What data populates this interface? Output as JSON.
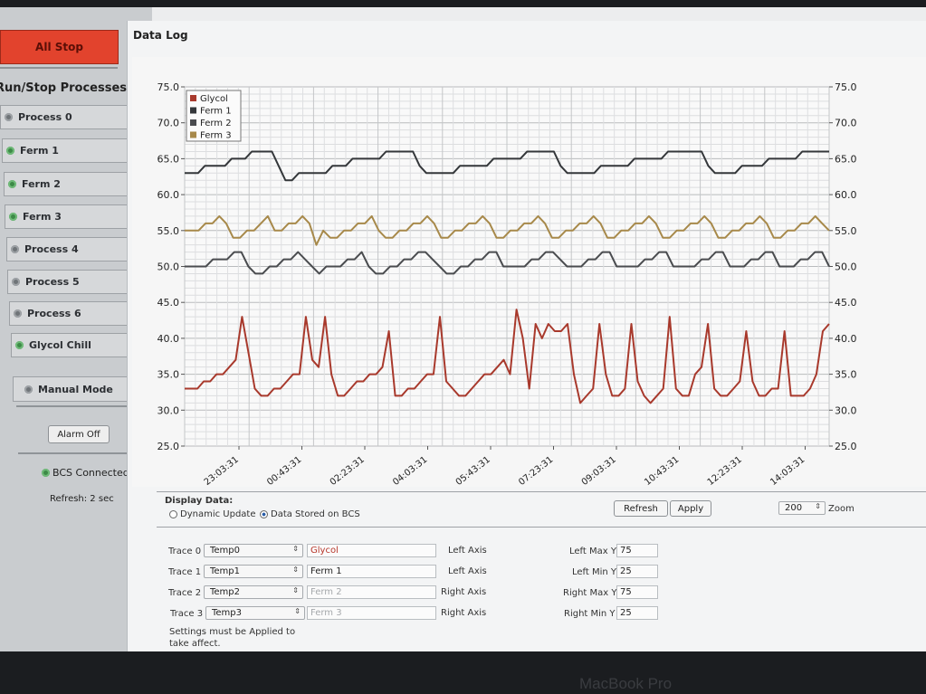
{
  "sidebar": {
    "all_stop": "All Stop",
    "processes_title": "Run/Stop Processes",
    "processes": [
      {
        "label": "Process 0",
        "status": "grey"
      },
      {
        "label": "Ferm 1",
        "status": "green"
      },
      {
        "label": "Ferm 2",
        "status": "green"
      },
      {
        "label": "Ferm 3",
        "status": "green"
      },
      {
        "label": "Process 4",
        "status": "grey"
      },
      {
        "label": "Process 5",
        "status": "grey"
      },
      {
        "label": "Process 6",
        "status": "grey"
      },
      {
        "label": "Glycol Chill",
        "status": "green"
      }
    ],
    "manual_mode": "Manual Mode",
    "alarm_off": "Alarm Off",
    "bcs_status": "BCS Connected",
    "refresh": "Refresh: 2 sec"
  },
  "main": {
    "title": "Data Log"
  },
  "chart_data": {
    "type": "line",
    "x_ticks": [
      "23:03:31",
      "00:43:31",
      "02:23:31",
      "04:03:31",
      "05:43:31",
      "07:23:31",
      "09:03:31",
      "10:43:31",
      "12:23:31",
      "14:03:31"
    ],
    "y_left_ticks": [
      "75.0",
      "70.0",
      "65.0",
      "60.0",
      "55.0",
      "50.0",
      "45.0",
      "40.0",
      "35.0",
      "30.0",
      "25.0"
    ],
    "y_right_ticks": [
      "75.0",
      "70.0",
      "65.0",
      "60.0",
      "55.0",
      "50.0",
      "45.0",
      "40.0",
      "35.0",
      "30.0",
      "25.0"
    ],
    "ylim_left": [
      25,
      75
    ],
    "ylim_right": [
      25,
      75
    ],
    "grid": true,
    "legend_position": "top-left",
    "series": [
      {
        "name": "Glycol",
        "color": "#a8392c",
        "axis": "left",
        "values": [
          33,
          33,
          33,
          34,
          34,
          35,
          35,
          36,
          37,
          43,
          38,
          33,
          32,
          32,
          33,
          33,
          34,
          35,
          35,
          43,
          37,
          36,
          43,
          35,
          32,
          32,
          33,
          34,
          34,
          35,
          35,
          36,
          41,
          32,
          32,
          33,
          33,
          34,
          35,
          35,
          43,
          34,
          33,
          32,
          32,
          33,
          34,
          35,
          35,
          36,
          37,
          35,
          44,
          40,
          33,
          42,
          40,
          42,
          41,
          41,
          42,
          35,
          31,
          32,
          33,
          42,
          35,
          32,
          32,
          33,
          42,
          34,
          32,
          31,
          32,
          33,
          43,
          33,
          32,
          32,
          35,
          36,
          42,
          33,
          32,
          32,
          33,
          34,
          41,
          34,
          32,
          32,
          33,
          33,
          41,
          32,
          32,
          32,
          33,
          35,
          41,
          42
        ]
      },
      {
        "name": "Ferm 1",
        "color": "#34373a",
        "axis": "left",
        "values": [
          63,
          63,
          63,
          64,
          64,
          64,
          64,
          65,
          65,
          65,
          66,
          66,
          66,
          66,
          64,
          62,
          62,
          63,
          63,
          63,
          63,
          63,
          64,
          64,
          64,
          65,
          65,
          65,
          65,
          65,
          66,
          66,
          66,
          66,
          66,
          64,
          63,
          63,
          63,
          63,
          63,
          64,
          64,
          64,
          64,
          64,
          65,
          65,
          65,
          65,
          65,
          66,
          66,
          66,
          66,
          66,
          64,
          63,
          63,
          63,
          63,
          63,
          64,
          64,
          64,
          64,
          64,
          65,
          65,
          65,
          65,
          65,
          66,
          66,
          66,
          66,
          66,
          66,
          64,
          63,
          63,
          63,
          63,
          64,
          64,
          64,
          64,
          65,
          65,
          65,
          65,
          65,
          66,
          66,
          66,
          66,
          66
        ]
      },
      {
        "name": "Ferm 2",
        "color": "#4a4c4f",
        "axis": "right",
        "values": [
          50,
          50,
          50,
          50,
          51,
          51,
          51,
          52,
          52,
          50,
          49,
          49,
          50,
          50,
          51,
          51,
          52,
          51,
          50,
          49,
          50,
          50,
          50,
          51,
          51,
          52,
          50,
          49,
          49,
          50,
          50,
          51,
          51,
          52,
          52,
          51,
          50,
          49,
          49,
          50,
          50,
          51,
          51,
          52,
          52,
          50,
          50,
          50,
          50,
          51,
          51,
          52,
          52,
          51,
          50,
          50,
          50,
          51,
          51,
          52,
          52,
          50,
          50,
          50,
          50,
          51,
          51,
          52,
          52,
          50,
          50,
          50,
          50,
          51,
          51,
          52,
          52,
          50,
          50,
          50,
          51,
          51,
          52,
          52,
          50,
          50,
          50,
          51,
          51,
          52,
          52,
          50
        ]
      },
      {
        "name": "Ferm 3",
        "color": "#a7894a",
        "axis": "right",
        "values": [
          55,
          55,
          55,
          56,
          56,
          57,
          56,
          54,
          54,
          55,
          55,
          56,
          57,
          55,
          55,
          56,
          56,
          57,
          56,
          53,
          55,
          54,
          54,
          55,
          55,
          56,
          56,
          57,
          55,
          54,
          54,
          55,
          55,
          56,
          56,
          57,
          56,
          54,
          54,
          55,
          55,
          56,
          56,
          57,
          56,
          54,
          54,
          55,
          55,
          56,
          56,
          57,
          56,
          54,
          54,
          55,
          55,
          56,
          56,
          57,
          56,
          54,
          54,
          55,
          55,
          56,
          56,
          57,
          56,
          54,
          54,
          55,
          55,
          56,
          56,
          57,
          56,
          54,
          54,
          55,
          55,
          56,
          56,
          57,
          56,
          54,
          54,
          55,
          55,
          56,
          56,
          57,
          56,
          55
        ]
      }
    ]
  },
  "display": {
    "title": "Display Data:",
    "option_dynamic": "Dynamic Update",
    "option_stored": "Data Stored on BCS",
    "selected": "stored",
    "refresh_btn": "Refresh",
    "apply_btn": "Apply",
    "zoom_value": "200",
    "zoom_label": "Zoom"
  },
  "traces": [
    {
      "label": "Trace 0",
      "source": "Temp0",
      "name": "Glycol",
      "axis": "Left Axis",
      "limit_label": "Left Max Y",
      "limit_value": "75"
    },
    {
      "label": "Trace 1",
      "source": "Temp1",
      "name": "Ferm 1",
      "axis": "Left Axis",
      "limit_label": "Left Min Y",
      "limit_value": "25"
    },
    {
      "label": "Trace 2",
      "source": "Temp2",
      "name": "Ferm 2",
      "axis": "Right Axis",
      "limit_label": "Right Max Y",
      "limit_value": "75"
    },
    {
      "label": "Trace 3",
      "source": "Temp3",
      "name": "Ferm 3",
      "axis": "Right Axis",
      "limit_label": "Right Min Y",
      "limit_value": "25"
    }
  ],
  "settings_note": "Settings must be Applied to take affect.",
  "bezel_label": "MacBook Pro"
}
